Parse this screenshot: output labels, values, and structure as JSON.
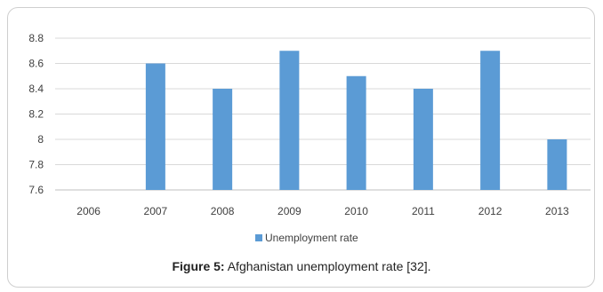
{
  "chart_data": {
    "type": "bar",
    "categories": [
      "2006",
      "2007",
      "2008",
      "2009",
      "2010",
      "2011",
      "2012",
      "2013"
    ],
    "series": [
      {
        "name": "Unemployment rate",
        "values": [
          null,
          8.6,
          8.4,
          8.7,
          8.5,
          8.4,
          8.7,
          8.0
        ]
      }
    ],
    "ylim": [
      7.6,
      8.8
    ],
    "yticks": [
      "7.6",
      "7.8",
      "8",
      "8.2",
      "8.4",
      "8.6",
      "8.8"
    ],
    "grid": true,
    "legend": "bottom",
    "colors": {
      "bar": "#5b9bd5",
      "grid": "#d9d9d9",
      "axis": "#bfbfbf"
    }
  },
  "caption": {
    "label": "Figure 5:",
    "text": " Afghanistan unemployment rate [32]."
  }
}
